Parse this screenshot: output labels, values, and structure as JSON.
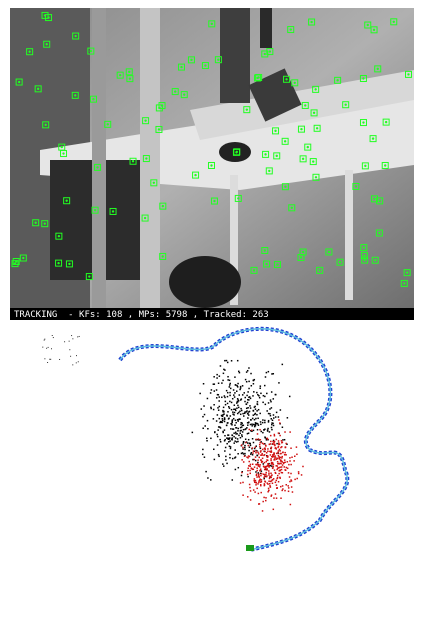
{
  "status_bar": {
    "text": "TRACKING  - KFs: 108 , MPs: 5798 , Tracked: 263"
  }
}
